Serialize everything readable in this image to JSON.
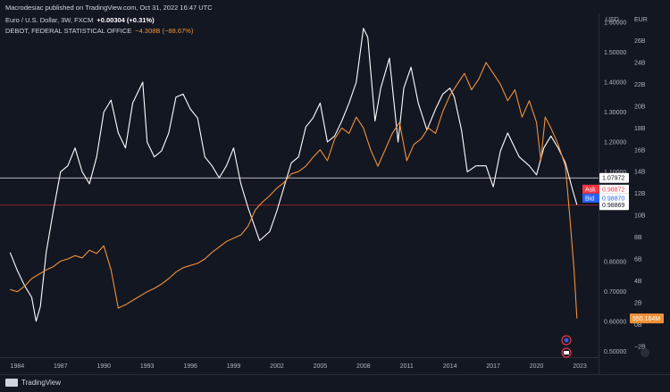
{
  "header": {
    "published": "Macrodesiac published on TradingView.com, Oct 31, 2022 16:47 UTC",
    "series1_name": "Euro / U.S. Dollar, 3W, FXCM",
    "series1_change": "+0.00304 (+0.31%)",
    "series2_name": "DEBOT, FEDERAL STATISTICAL OFFICE",
    "series2_change": "−4.308B (−88.67%)"
  },
  "units": {
    "left": "USD",
    "right": "EUR"
  },
  "footer": {
    "brand": "TradingView"
  },
  "colors": {
    "eurusd": "#ffffff",
    "debt": "#f0913a",
    "background": "#131722",
    "ask": "#f23645",
    "bid": "#2962ff"
  },
  "markers": {
    "ask_label": "Ask",
    "ask_value": "0.98872",
    "bid_label": "Bid",
    "bid_value": "0.98870"
  },
  "chart_data": {
    "type": "line",
    "x_ticks": [
      "1984",
      "1987",
      "1990",
      "1993",
      "1996",
      "1999",
      "2002",
      "2005",
      "2008",
      "2011",
      "2014",
      "2017",
      "2020",
      "2023"
    ],
    "y_left_ticks": [
      "1.60000",
      "1.50000",
      "1.40000",
      "1.30000",
      "1.20000",
      "1.10000",
      "0.80000",
      "0.70000",
      "0.60000",
      "0.50000"
    ],
    "y_right_ticks": [
      "26B",
      "24B",
      "22B",
      "20B",
      "18B",
      "16B",
      "14B",
      "12B",
      "10B",
      "8B",
      "6B",
      "4B",
      "2B",
      "0B",
      "−2B"
    ],
    "ylim_left": [
      0.48,
      1.63
    ],
    "ylim_right": [
      -3,
      28.5
    ],
    "horizontal_lines": [
      {
        "value": 1.07972,
        "label": "1.07972",
        "color": "#ffffff"
      },
      {
        "value": 0.98869,
        "label": "0.98869",
        "color": "#b22833"
      }
    ],
    "debt_last_label": "550.164M",
    "series": [
      {
        "name": "Euro / U.S. Dollar",
        "axis": "left",
        "color": "#ffffff",
        "x": [
          1983.5,
          1984.0,
          1984.5,
          1985.0,
          1985.3,
          1985.6,
          1986.0,
          1986.5,
          1987.0,
          1987.5,
          1988.0,
          1988.5,
          1989.0,
          1989.5,
          1990.0,
          1990.5,
          1991.0,
          1991.5,
          1992.0,
          1992.7,
          1993.0,
          1993.5,
          1994.0,
          1994.5,
          1995.0,
          1995.5,
          1996.0,
          1996.5,
          1997.0,
          1997.5,
          1998.0,
          1998.5,
          1999.0,
          1999.5,
          2000.0,
          2000.8,
          2001.5,
          2002.0,
          2002.5,
          2003.0,
          2003.5,
          2004.0,
          2004.5,
          2005.0,
          2005.5,
          2006.0,
          2006.5,
          2007.0,
          2007.5,
          2008.0,
          2008.3,
          2008.8,
          2009.2,
          2009.8,
          2010.4,
          2010.8,
          2011.3,
          2011.8,
          2012.4,
          2013.0,
          2013.5,
          2014.0,
          2014.3,
          2014.8,
          2015.2,
          2015.8,
          2016.5,
          2017.0,
          2017.5,
          2018.0,
          2018.3,
          2018.8,
          2019.5,
          2020.0,
          2020.5,
          2021.0,
          2021.5,
          2022.0,
          2022.5,
          2022.8
        ],
        "values": [
          0.83,
          0.77,
          0.72,
          0.68,
          0.6,
          0.65,
          0.83,
          0.97,
          1.1,
          1.12,
          1.18,
          1.1,
          1.06,
          1.15,
          1.3,
          1.34,
          1.23,
          1.18,
          1.33,
          1.4,
          1.2,
          1.15,
          1.17,
          1.23,
          1.35,
          1.36,
          1.31,
          1.28,
          1.15,
          1.12,
          1.08,
          1.12,
          1.18,
          1.06,
          0.98,
          0.87,
          0.9,
          0.97,
          1.05,
          1.13,
          1.15,
          1.25,
          1.28,
          1.33,
          1.2,
          1.22,
          1.27,
          1.33,
          1.4,
          1.58,
          1.55,
          1.27,
          1.38,
          1.48,
          1.2,
          1.38,
          1.45,
          1.33,
          1.24,
          1.31,
          1.36,
          1.38,
          1.35,
          1.24,
          1.1,
          1.12,
          1.12,
          1.05,
          1.17,
          1.23,
          1.2,
          1.15,
          1.12,
          1.09,
          1.18,
          1.22,
          1.18,
          1.13,
          1.04,
          0.99
        ]
      },
      {
        "name": "DEBOT, FEDERAL STATISTICAL OFFICE",
        "axis": "right",
        "color": "#f0913a",
        "x": [
          1983.5,
          1984.0,
          1984.5,
          1985.0,
          1985.5,
          1986.0,
          1986.5,
          1987.0,
          1987.5,
          1988.0,
          1988.5,
          1989.0,
          1989.5,
          1990.0,
          1990.5,
          1991.0,
          1991.5,
          1992.0,
          1992.5,
          1993.0,
          1993.5,
          1994.0,
          1994.5,
          1995.0,
          1995.5,
          1996.0,
          1996.5,
          1997.0,
          1997.5,
          1998.0,
          1998.5,
          1999.0,
          1999.5,
          2000.0,
          2000.5,
          2001.0,
          2001.5,
          2002.0,
          2002.5,
          2003.0,
          2003.5,
          2004.0,
          2004.5,
          2005.0,
          2005.5,
          2006.0,
          2006.5,
          2007.0,
          2007.5,
          2008.0,
          2008.5,
          2009.0,
          2009.5,
          2010.0,
          2010.5,
          2011.0,
          2011.5,
          2012.0,
          2012.5,
          2013.0,
          2013.5,
          2014.0,
          2014.5,
          2015.0,
          2015.5,
          2016.0,
          2016.5,
          2017.0,
          2017.5,
          2018.0,
          2018.5,
          2019.0,
          2019.5,
          2020.0,
          2020.3,
          2020.6,
          2021.0,
          2021.5,
          2022.0,
          2022.3,
          2022.6,
          2022.8
        ],
        "values": [
          3.2,
          3.0,
          3.5,
          4.2,
          4.6,
          5.0,
          5.3,
          5.8,
          6.0,
          6.3,
          6.1,
          6.8,
          6.5,
          7.2,
          5.0,
          1.5,
          1.8,
          2.2,
          2.6,
          3.0,
          3.3,
          3.7,
          4.2,
          4.8,
          5.2,
          5.4,
          5.6,
          6.0,
          6.6,
          7.1,
          7.6,
          7.9,
          8.2,
          9.0,
          10.5,
          11.2,
          11.8,
          12.5,
          13.0,
          13.8,
          14.0,
          14.5,
          15.3,
          16.0,
          15.0,
          17.0,
          18.0,
          17.5,
          19.0,
          18.0,
          16.0,
          14.5,
          16.0,
          17.5,
          18.5,
          15.0,
          16.5,
          17.0,
          18.0,
          17.5,
          19.5,
          21.0,
          22.0,
          23.0,
          21.5,
          22.5,
          24.0,
          23.0,
          22.0,
          20.5,
          21.5,
          19.0,
          20.5,
          18.5,
          15.0,
          19.0,
          18.0,
          16.5,
          14.5,
          10.0,
          5.0,
          0.55
        ]
      }
    ]
  }
}
